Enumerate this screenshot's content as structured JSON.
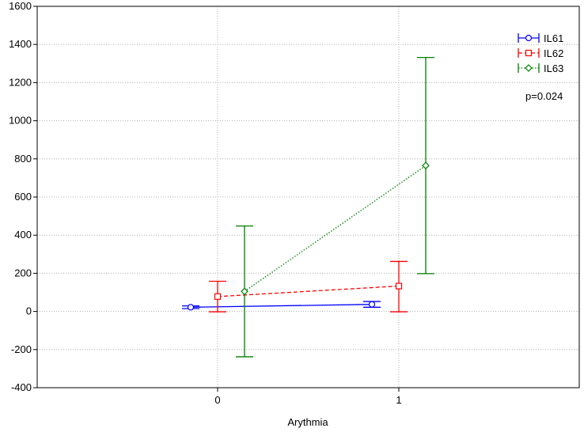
{
  "chart_data": {
    "type": "line",
    "xlabel": "Arythmia",
    "ylabel": "",
    "categories": [
      "0",
      "1"
    ],
    "ylim": [
      -400,
      1600
    ],
    "yticks": [
      -400,
      -200,
      0,
      200,
      400,
      600,
      800,
      1000,
      1200,
      1400,
      1600
    ],
    "grid": true,
    "legend_position": "top-right",
    "annotation": "p=0.024",
    "series": [
      {
        "name": "IL61",
        "color": "#0000ff",
        "line_style": "solid",
        "marker": "circle",
        "values": [
          22,
          37
        ],
        "error_low": [
          15,
          22
        ],
        "error_high": [
          29,
          52
        ]
      },
      {
        "name": "IL62",
        "color": "#ff0000",
        "line_style": "dashed",
        "marker": "square",
        "values": [
          78,
          133
        ],
        "error_low": [
          -2,
          -2
        ],
        "error_high": [
          158,
          262
        ]
      },
      {
        "name": "IL63",
        "color": "#008000",
        "line_style": "dotted",
        "marker": "diamond",
        "values": [
          105,
          765
        ],
        "error_low": [
          -238,
          198
        ],
        "error_high": [
          448,
          1332
        ]
      }
    ]
  }
}
